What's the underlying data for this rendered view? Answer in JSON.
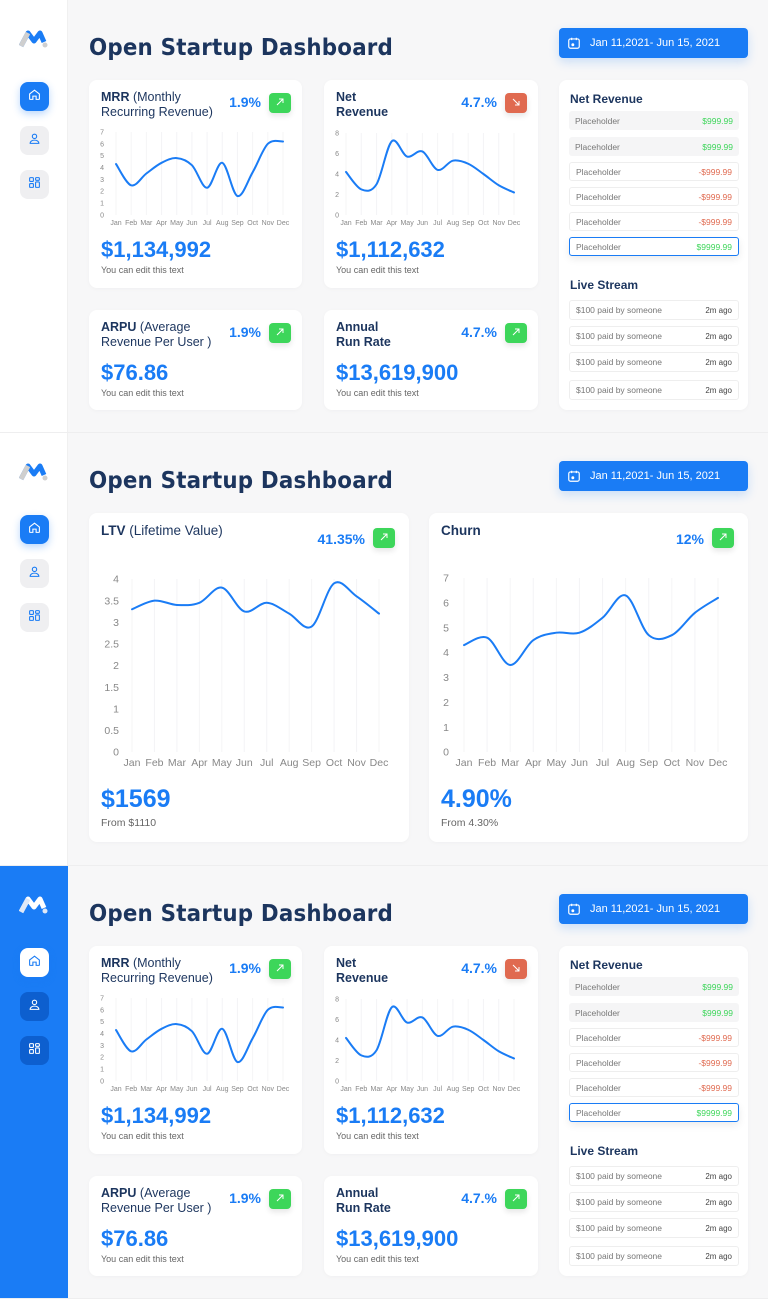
{
  "app": {
    "title": "Open Startup Dashboard",
    "date_range": "Jan 11,2021- Jun 15, 2021"
  },
  "sidebar": {
    "items": [
      {
        "icon": "home-icon",
        "active": true
      },
      {
        "icon": "user-icon",
        "active": false
      },
      {
        "icon": "grid-icon",
        "active": false
      }
    ]
  },
  "colors": {
    "primary": "#1a7cf5",
    "heading": "#1c355e",
    "up": "#3dd65a",
    "down": "#e06a50",
    "sidebar_variant_bg": "#1a7cf5"
  },
  "overview": {
    "mrr": {
      "title": "MRR",
      "subtitle": "(Monthly Recurring Revenue)",
      "change": "1.9%",
      "trend": "up",
      "value": "$1,134,992",
      "note": "You can edit this text"
    },
    "net_revenue": {
      "title": "Net Revenue",
      "subtitle": "",
      "change": "4.7.%",
      "trend": "down",
      "value": "$1,112,632",
      "note": "You can edit this text"
    },
    "arpu": {
      "title": "ARPU",
      "subtitle": "(Average Revenue Per User )",
      "change": "1.9%",
      "trend": "up",
      "value": "$76.86",
      "note": "You can edit this text"
    },
    "arr": {
      "title": "Annual Run Rate",
      "subtitle": "",
      "change": "4.7.%",
      "trend": "up",
      "value": "$13,619,900",
      "note": "You can edit this text"
    }
  },
  "net_revenue_list": {
    "title": "Net Revenue",
    "items": [
      {
        "label": "Placeholder",
        "amount": "$999.99",
        "type": "positive"
      },
      {
        "label": "Placeholder",
        "amount": "$999.99",
        "type": "positive"
      },
      {
        "label": "Placeholder",
        "amount": "-$999.99",
        "type": "negative"
      },
      {
        "label": "Placeholder",
        "amount": "-$999.99",
        "type": "negative"
      },
      {
        "label": "Placeholder",
        "amount": "-$999.99",
        "type": "negative"
      },
      {
        "label": "Placeholder",
        "amount": "$9999.99",
        "type": "positive",
        "selected": true
      }
    ]
  },
  "live_stream": {
    "title": "Live Stream",
    "items": [
      {
        "text": "$100 paid by someone",
        "time": "2m ago"
      },
      {
        "text": "$100 paid by someone",
        "time": "2m ago"
      },
      {
        "text": "$100 paid by someone",
        "time": "2m ago"
      },
      {
        "text": "$100 paid by someone",
        "time": "2m ago"
      }
    ]
  },
  "ltv": {
    "title": "LTV",
    "subtitle": "(Lifetime Value)",
    "change": "41.35%",
    "trend": "up",
    "value": "$1569",
    "note": "From $1110"
  },
  "churn": {
    "title": "Churn",
    "subtitle": "",
    "change": "12%",
    "trend": "up",
    "value": "4.90%",
    "note": "From 4.30%"
  },
  "chart_data": [
    {
      "type": "line",
      "categories": [
        "Jan",
        "Feb",
        "Mar",
        "Apr",
        "May",
        "Jun",
        "Jul",
        "Aug",
        "Sep",
        "Oct",
        "Nov",
        "Dec"
      ],
      "values": [
        4.3,
        2.5,
        3.5,
        4.4,
        4.8,
        4.2,
        2.3,
        4.4,
        1.6,
        3.6,
        6.0,
        6.2
      ],
      "ylim": [
        0,
        7
      ],
      "yticks": [
        "0",
        "1",
        "2",
        "3",
        "4",
        "5",
        "6",
        "7"
      ],
      "grid": "vertical"
    },
    {
      "type": "line",
      "categories": [
        "Jan",
        "Feb",
        "Mar",
        "Apr",
        "May",
        "Jun",
        "Jul",
        "Aug",
        "Sep",
        "Oct",
        "Nov",
        "Dec"
      ],
      "values": [
        4.2,
        2.5,
        3.0,
        7.2,
        5.7,
        6.2,
        4.4,
        5.3,
        5.0,
        4.0,
        2.9,
        2.2
      ],
      "ylim": [
        0,
        8
      ],
      "yticks": [
        "0",
        "2",
        "4",
        "6",
        "8"
      ],
      "grid": "vertical"
    },
    {
      "type": "line",
      "categories": [
        "Jan",
        "Feb",
        "Mar",
        "Apr",
        "May",
        "Jun",
        "Jul",
        "Aug",
        "Sep",
        "Oct",
        "Nov",
        "Dec"
      ],
      "values": [
        3.3,
        3.5,
        3.4,
        3.45,
        3.8,
        3.25,
        3.45,
        3.2,
        2.9,
        3.9,
        3.6,
        3.2
      ],
      "ylim": [
        0,
        4
      ],
      "yticks": [
        "0",
        "0.5",
        "1",
        "1.5",
        "2",
        "2.5",
        "3",
        "3.5",
        "4"
      ],
      "grid": "vertical"
    },
    {
      "type": "line",
      "categories": [
        "Jan",
        "Feb",
        "Mar",
        "Apr",
        "May",
        "Jun",
        "Jul",
        "Aug",
        "Sep",
        "Oct",
        "Nov",
        "Dec"
      ],
      "values": [
        4.3,
        4.6,
        3.5,
        4.5,
        4.8,
        4.8,
        5.4,
        6.3,
        4.7,
        4.7,
        5.6,
        6.2
      ],
      "ylim": [
        0,
        7
      ],
      "yticks": [
        "0",
        "1",
        "2",
        "3",
        "4",
        "5",
        "6",
        "7"
      ],
      "grid": "vertical"
    }
  ]
}
